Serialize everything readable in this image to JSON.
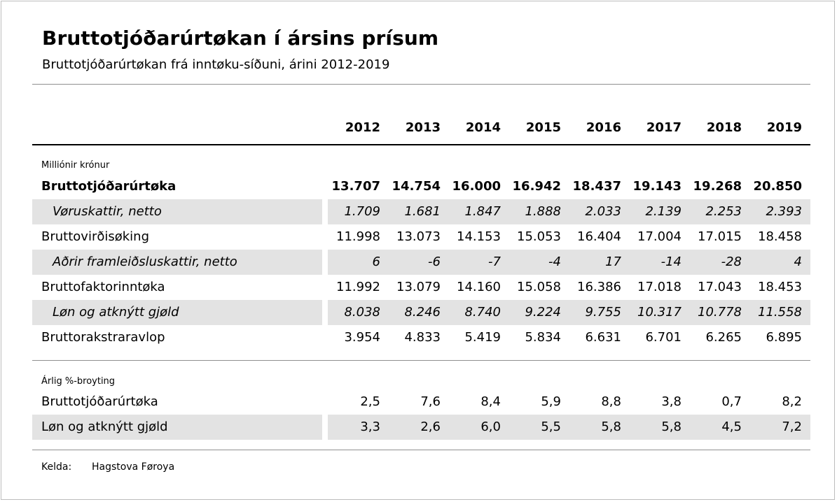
{
  "header": {
    "title": "Bruttotjóðarúrtøkan í ársins prísum",
    "subtitle": "Bruttotjóðarúrtøkan frá inntøku-síðuni, árini 2012-2019"
  },
  "years": [
    "2012",
    "2013",
    "2014",
    "2015",
    "2016",
    "2017",
    "2018",
    "2019"
  ],
  "section1": {
    "label": "Milliónir krónur",
    "rows": [
      {
        "label": "Bruttotjóðarúrtøka",
        "style": "bold",
        "values": [
          "13.707",
          "14.754",
          "16.000",
          "16.942",
          "18.437",
          "19.143",
          "19.268",
          "20.850"
        ]
      },
      {
        "label": "Vøruskattir, netto",
        "style": "italic",
        "values": [
          "1.709",
          "1.681",
          "1.847",
          "1.888",
          "2.033",
          "2.139",
          "2.253",
          "2.393"
        ]
      },
      {
        "label": "Bruttovirðisøking",
        "style": "normal",
        "values": [
          "11.998",
          "13.073",
          "14.153",
          "15.053",
          "16.404",
          "17.004",
          "17.015",
          "18.458"
        ]
      },
      {
        "label": "Aðrir framleiðsluskattir, netto",
        "style": "italic",
        "values": [
          "6",
          "-6",
          "-7",
          "-4",
          "17",
          "-14",
          "-28",
          "4"
        ]
      },
      {
        "label": "Bruttofaktorinntøka",
        "style": "normal",
        "values": [
          "11.992",
          "13.079",
          "14.160",
          "15.058",
          "16.386",
          "17.018",
          "17.043",
          "18.453"
        ]
      },
      {
        "label": "Løn og atknýtt gjøld",
        "style": "italic",
        "values": [
          "8.038",
          "8.246",
          "8.740",
          "9.224",
          "9.755",
          "10.317",
          "10.778",
          "11.558"
        ]
      },
      {
        "label": "Bruttorakstraravlop",
        "style": "normal",
        "values": [
          "3.954",
          "4.833",
          "5.419",
          "5.834",
          "6.631",
          "6.701",
          "6.265",
          "6.895"
        ]
      }
    ]
  },
  "section2": {
    "label": "Árlig %-broyting",
    "rows": [
      {
        "label": "Bruttotjóðarúrtøka",
        "style": "normal",
        "values": [
          "2,5",
          "7,6",
          "8,4",
          "5,9",
          "8,8",
          "3,8",
          "0,7",
          "8,2"
        ]
      },
      {
        "label": "Løn og atknýtt gjøld",
        "style": "normal",
        "values": [
          "3,3",
          "2,6",
          "6,0",
          "5,5",
          "5,8",
          "5,8",
          "4,5",
          "7,2"
        ]
      }
    ]
  },
  "footer": {
    "source_key": "Kelda:",
    "source_value": "Hagstova Føroya"
  }
}
